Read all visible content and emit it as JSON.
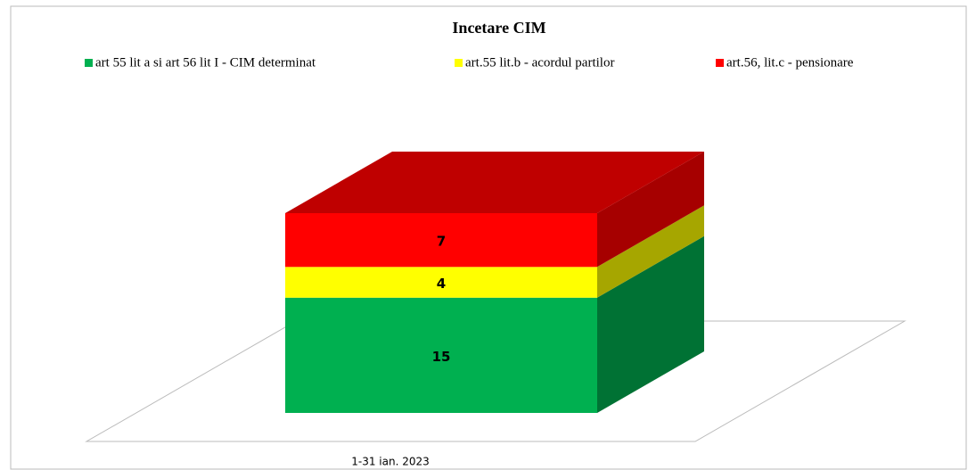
{
  "chart_data": {
    "type": "bar3d_stacked",
    "title": "Incetare CIM",
    "categories": [
      "1-31 ian. 2023"
    ],
    "series": [
      {
        "name": "art 55 lit a si art 56 lit I - CIM determinat",
        "color": "#00b050",
        "values": [
          15
        ]
      },
      {
        "name": "art.55 lit.b - acordul partilor",
        "color": "#ffff00",
        "values": [
          4
        ]
      },
      {
        "name": "art.56, lit.c - pensionare",
        "color": "#ff0000",
        "values": [
          7
        ]
      }
    ]
  }
}
